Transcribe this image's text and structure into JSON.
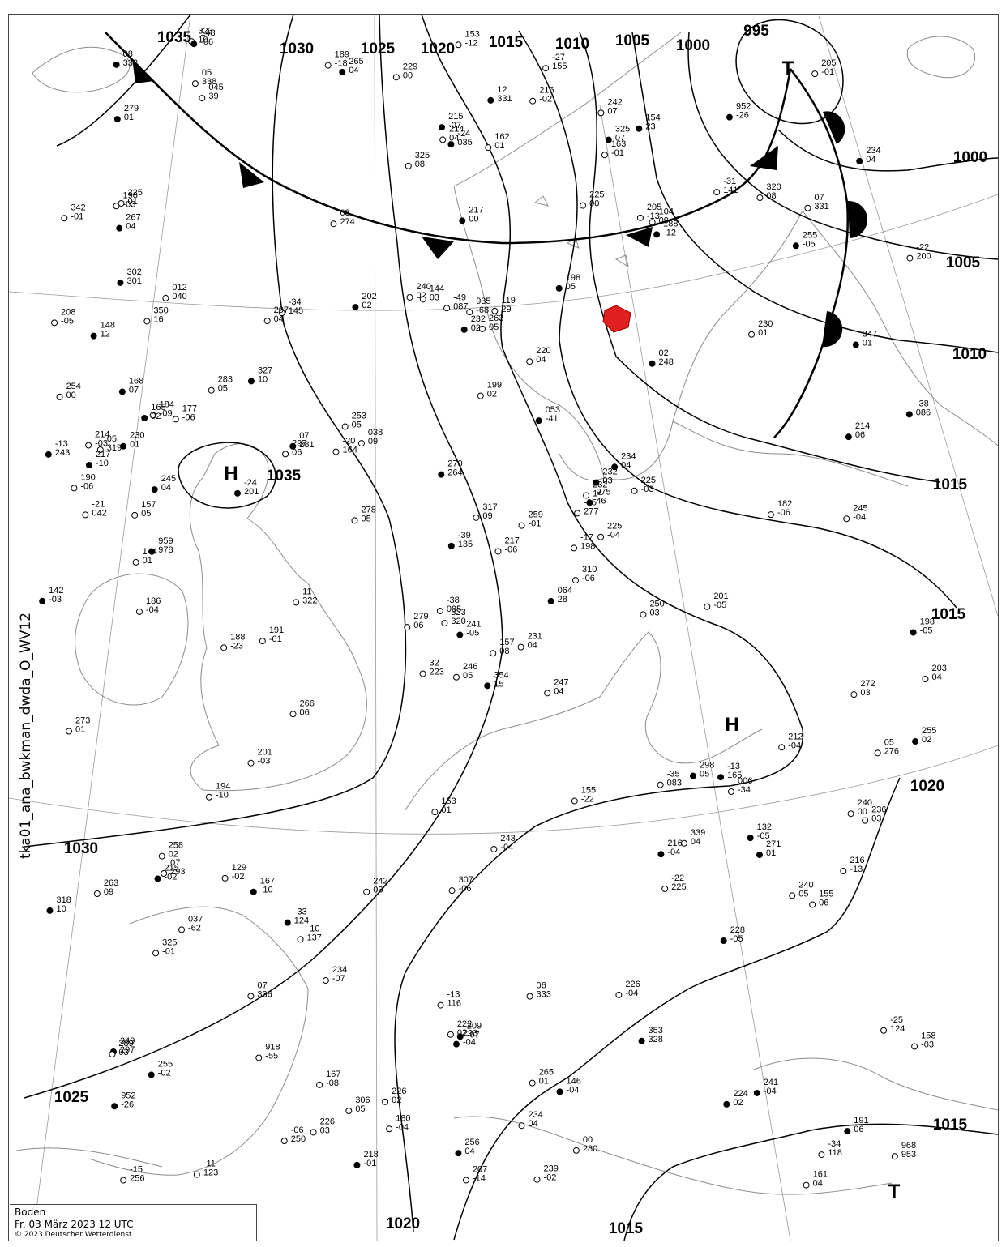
{
  "caption": "tka01_ana_bwkman_dwda_O_WV12",
  "footer": {
    "region": "Boden",
    "datetime": "Fr. 03 März 2023 12 UTC",
    "copyright": "© 2023 Deutscher Wetterdienst"
  },
  "colors": {
    "lines": "#000000",
    "coast": "#888888",
    "station_marker": "#e02020"
  },
  "fronts": [
    {
      "type": "cold",
      "symbol": "triangles"
    },
    {
      "type": "warm",
      "symbol": "semicircles"
    }
  ],
  "isobar_labels": [
    "1035",
    "1030",
    "1025",
    "1020",
    "1015",
    "1010",
    "1005",
    "1000",
    "995",
    "1035",
    "1030",
    "1025",
    "1020",
    "1015",
    "1020",
    "1015",
    "1000",
    "1005",
    "1010",
    "1015",
    "1020",
    "1020",
    "1015"
  ],
  "pressure_centers": [
    {
      "type": "H",
      "value": "1035"
    },
    {
      "type": "H"
    },
    {
      "type": "T"
    },
    {
      "type": "T"
    }
  ],
  "station_values": [
    "354",
    "15",
    "350",
    "16",
    "323",
    "320",
    "349",
    "297",
    "-05",
    "277",
    "-10",
    "137",
    "154",
    "23",
    "119",
    "29",
    "104",
    "09",
    "064",
    "28",
    "045",
    "39",
    "968",
    "953",
    "959",
    "978",
    "-22",
    "200",
    "32",
    "223",
    "02",
    "248",
    "-11",
    "123",
    "-49",
    "087",
    "053",
    "-41",
    "037",
    "-62",
    "038",
    "09",
    "952",
    "-26",
    "918",
    "-55",
    "935",
    "-68",
    "975",
    "46",
    "006",
    "-34",
    "012",
    "040",
    "-24",
    "035",
    "-21",
    "042",
    "-35",
    "083",
    "-38",
    "086",
    "-38",
    "085",
    "-13",
    "116",
    "-39",
    "135",
    "-34",
    "145",
    "-31",
    "141",
    "-33",
    "124",
    "-34",
    "118",
    "-25",
    "124",
    "-13",
    "165",
    "-27",
    "155",
    "-20",
    "164",
    "-24",
    "201",
    "-22",
    "225",
    "-06",
    "250",
    "-13",
    "243",
    "-17",
    "198",
    "-15",
    "256",
    "293",
    "-04",
    "310",
    "-06",
    "325",
    "-01",
    "347",
    "01",
    "342",
    "-01",
    "339",
    "04",
    "353",
    "328",
    "07",
    "336",
    "05",
    "338",
    "08",
    "332",
    "06",
    "333",
    "07",
    "331",
    "12",
    "331",
    "11",
    "322",
    "05",
    "319",
    "327",
    "10",
    "320",
    "08",
    "323",
    "10",
    "325",
    "07",
    "325",
    "08",
    "317",
    "09",
    "318",
    "10",
    "307",
    "-06",
    "306",
    "05",
    "298",
    "05",
    "297",
    "06",
    "289",
    "03",
    "279",
    "01",
    "283",
    "05",
    "273",
    "01",
    "270",
    "264",
    "265",
    "01",
    "259",
    "-01",
    "255",
    "-02",
    "250",
    "03",
    "236",
    "03",
    "256",
    "04",
    "245",
    "-04",
    "243",
    "-04",
    "241",
    "-04",
    "239",
    "-02",
    "226",
    "-04",
    "215",
    "-07",
    "203",
    "04",
    "225",
    "-03",
    "228",
    "-05",
    "217",
    "-06",
    "216",
    "-13",
    "217",
    "-10",
    "207",
    "-14",
    "205",
    "-13",
    "188",
    "-12",
    "188",
    "-23",
    "189",
    "-18",
    "198",
    "-05",
    "190",
    "-06",
    "194",
    "-10",
    "167",
    "-10",
    "167",
    "-08",
    "232",
    "14",
    "255",
    "-05",
    "278",
    "05",
    "272",
    "03",
    "267",
    "04",
    "263",
    "05",
    "279",
    "06",
    "265",
    "04",
    "263",
    "09",
    "246",
    "05",
    "234",
    "04",
    "240",
    "02",
    "229",
    "00",
    "215",
    "-02",
    "205",
    "-01",
    "220",
    "04",
    "202",
    "02",
    "201",
    "-05",
    "201",
    "-03",
    "191",
    "06",
    "180",
    "-04",
    "182",
    "-06",
    "302",
    "301",
    "07",
    "293",
    "00",
    "280",
    "07",
    "281",
    "08",
    "274",
    "05",
    "276",
    "271",
    "01",
    "266",
    "06",
    "258",
    "02",
    "255",
    "02",
    "253",
    "05",
    "247",
    "04",
    "245",
    "04",
    "240",
    "05",
    "231",
    "04",
    "232",
    "03",
    "225",
    "01",
    "226",
    "02",
    "224",
    "02",
    "222",
    "02",
    "214",
    "04",
    "214",
    "06",
    "207",
    "04",
    "214",
    "-03",
    "218",
    "-01",
    "212",
    "-04",
    "216",
    "-02",
    "217",
    "00",
    "199",
    "02",
    "191",
    "-01",
    "198",
    "05",
    "155",
    "-22",
    "162",
    "01",
    "142",
    "-03",
    "153",
    "-12",
    "163",
    "-01",
    "168",
    "07",
    "153",
    "01",
    "158",
    "-03",
    "148",
    "-06",
    "161",
    "04",
    "155",
    "06",
    "146",
    "-04",
    "254",
    "00",
    "242",
    "07",
    "234",
    "04",
    "226",
    "03",
    "225",
    "00",
    "216",
    "-04",
    "208",
    "-05",
    "184",
    "-09",
    "148",
    "12",
    "157",
    "08",
    "234",
    "04",
    "230",
    "01",
    "190",
    "-03",
    "177",
    "-06",
    "165",
    "02",
    "157",
    "05",
    "234",
    "-07",
    "241",
    "-05",
    "240",
    "00",
    "242",
    "03",
    "232",
    "02",
    "230",
    "01",
    "225",
    "-04",
    "209",
    "-07",
    "186",
    "-04",
    "144",
    "03",
    "132",
    "-05",
    "129",
    "-02",
    "144",
    "01",
    "952",
    "-26"
  ]
}
